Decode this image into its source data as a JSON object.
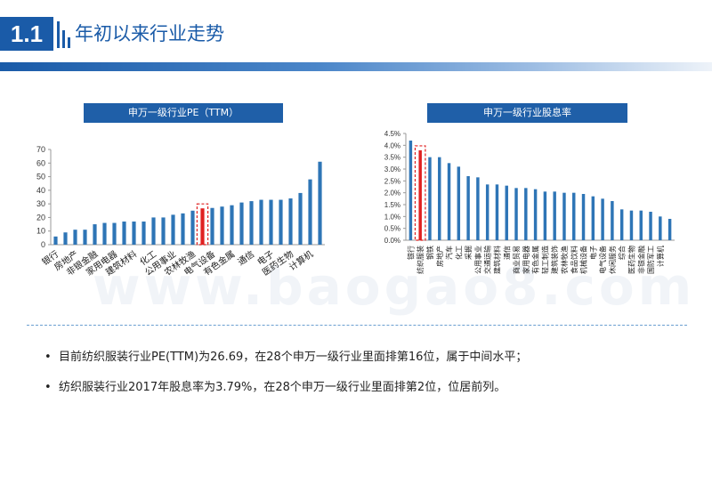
{
  "header": {
    "section_number": "1.1",
    "title": "年初以来行业走势"
  },
  "watermark": "www.baogao8.com",
  "colors": {
    "accent": "#1a5ba8",
    "bar": "#2e75b6",
    "highlight": "#e02020"
  },
  "chart_data": [
    {
      "type": "bar",
      "title": "申万一级行业PE（TTM）",
      "ylim": [
        0,
        70
      ],
      "yticks": [
        0,
        10,
        20,
        30,
        40,
        50,
        60,
        70
      ],
      "categories": [
        "银行",
        "",
        "房地产",
        "",
        "非银金融",
        "",
        "家用电器",
        "",
        "建筑材料",
        "",
        "化工",
        "",
        "公用事业",
        "",
        "农林牧渔",
        "",
        "电气设备",
        "",
        "有色金属",
        "",
        "通信",
        "",
        "电子",
        "",
        "医药生物",
        "",
        "计算机",
        ""
      ],
      "values": [
        6,
        9,
        11,
        11,
        15,
        16,
        16,
        17,
        17,
        17,
        20,
        20,
        22,
        23,
        25,
        26.69,
        27,
        28,
        29,
        31,
        32,
        33,
        33,
        33,
        34,
        38,
        48,
        61
      ],
      "highlight_index": 15
    },
    {
      "type": "bar",
      "title": "申万一级行业股息率",
      "ylim": [
        0,
        4.5
      ],
      "yticks": [
        "0.0%",
        "0.5%",
        "1.0%",
        "1.5%",
        "2.0%",
        "2.5%",
        "3.0%",
        "3.5%",
        "4.0%",
        "4.5%"
      ],
      "categories": [
        "银行",
        "纺织服装",
        "钢铁",
        "房地产",
        "汽车",
        "化工",
        "采掘",
        "公用事业",
        "交通运输",
        "建筑材料",
        "通信",
        "商业贸易",
        "家用电器",
        "有色金属",
        "轻工制造",
        "建筑装饰",
        "农林牧渔",
        "食品饮料",
        "机械设备",
        "电子",
        "电气设备",
        "休闲服务",
        "综合",
        "医药生物",
        "非银金融",
        "国防军工",
        "计算机",
        ""
      ],
      "values": [
        4.2,
        3.79,
        3.5,
        3.5,
        3.25,
        3.1,
        2.7,
        2.65,
        2.35,
        2.35,
        2.3,
        2.2,
        2.2,
        2.15,
        2.05,
        2.05,
        2.0,
        2.0,
        1.95,
        1.85,
        1.75,
        1.65,
        1.3,
        1.25,
        1.25,
        1.2,
        1.0,
        0.9
      ],
      "highlight_index": 1
    }
  ],
  "bullets": [
    "目前纺织服装行业PE(TTM)为26.69，在28个申万一级行业里面排第16位，属于中间水平；",
    "纺织服装行业2017年股息率为3.79%，在28个申万一级行业里面排第2位，位居前列。"
  ],
  "bullet_marker": "•"
}
